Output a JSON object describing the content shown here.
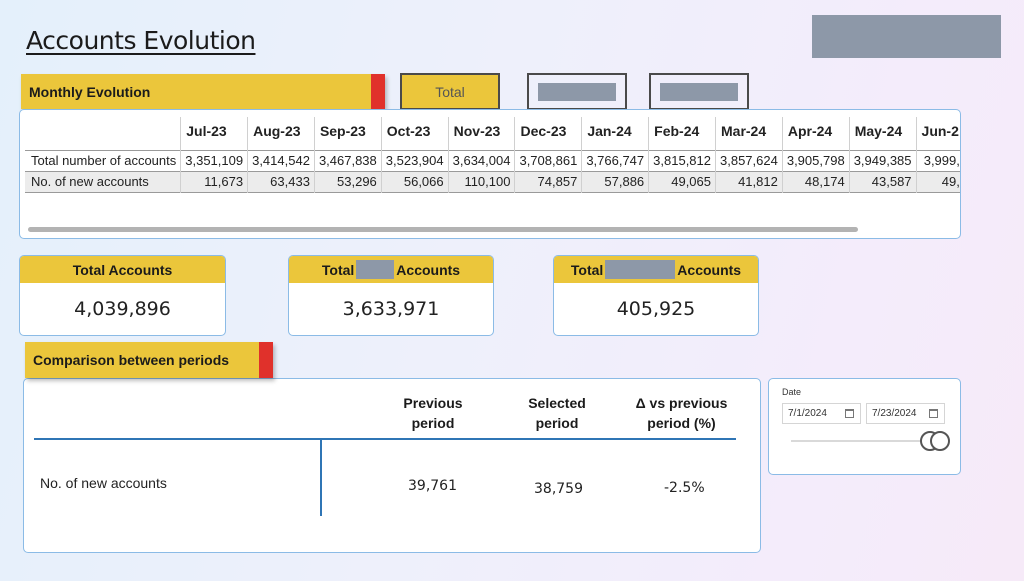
{
  "page": {
    "title": "Accounts Evolution"
  },
  "monthly": {
    "banner": "Monthly Evolution",
    "total_button": "Total",
    "columns": [
      "",
      "Jul-23",
      "Aug-23",
      "Sep-23",
      "Oct-23",
      "Nov-23",
      "Dec-23",
      "Jan-24",
      "Feb-24",
      "Mar-24",
      "Apr-24",
      "May-24",
      "Jun-2"
    ],
    "rows": [
      {
        "label": "Total number of accounts",
        "values": [
          "3,351,109",
          "3,414,542",
          "3,467,838",
          "3,523,904",
          "3,634,004",
          "3,708,861",
          "3,766,747",
          "3,815,812",
          "3,857,624",
          "3,905,798",
          "3,949,385",
          "3,999,"
        ]
      },
      {
        "label": "No. of new accounts",
        "values": [
          "11,673",
          "63,433",
          "53,296",
          "56,066",
          "110,100",
          "74,857",
          "57,886",
          "49,065",
          "41,812",
          "48,174",
          "43,587",
          "49,"
        ]
      }
    ]
  },
  "kpis": {
    "total": {
      "prefix": "Total Accounts",
      "suffix": "",
      "value": "4,039,896"
    },
    "second": {
      "prefix": "Total",
      "suffix": "Accounts",
      "value": "3,633,971"
    },
    "third": {
      "prefix": "Total",
      "suffix": "Accounts",
      "value": "405,925"
    }
  },
  "comparison": {
    "banner": "Comparison between periods",
    "headers": {
      "previous": "Previous period",
      "selected": "Selected period",
      "delta": "Δ vs previous period (%)"
    },
    "row_label": "No. of new accounts",
    "previous_value": "39,761",
    "selected_value": "38,759",
    "delta_value": "-2.5%"
  },
  "date_slicer": {
    "label": "Date",
    "start": "7/1/2024",
    "end": "7/23/2024"
  }
}
